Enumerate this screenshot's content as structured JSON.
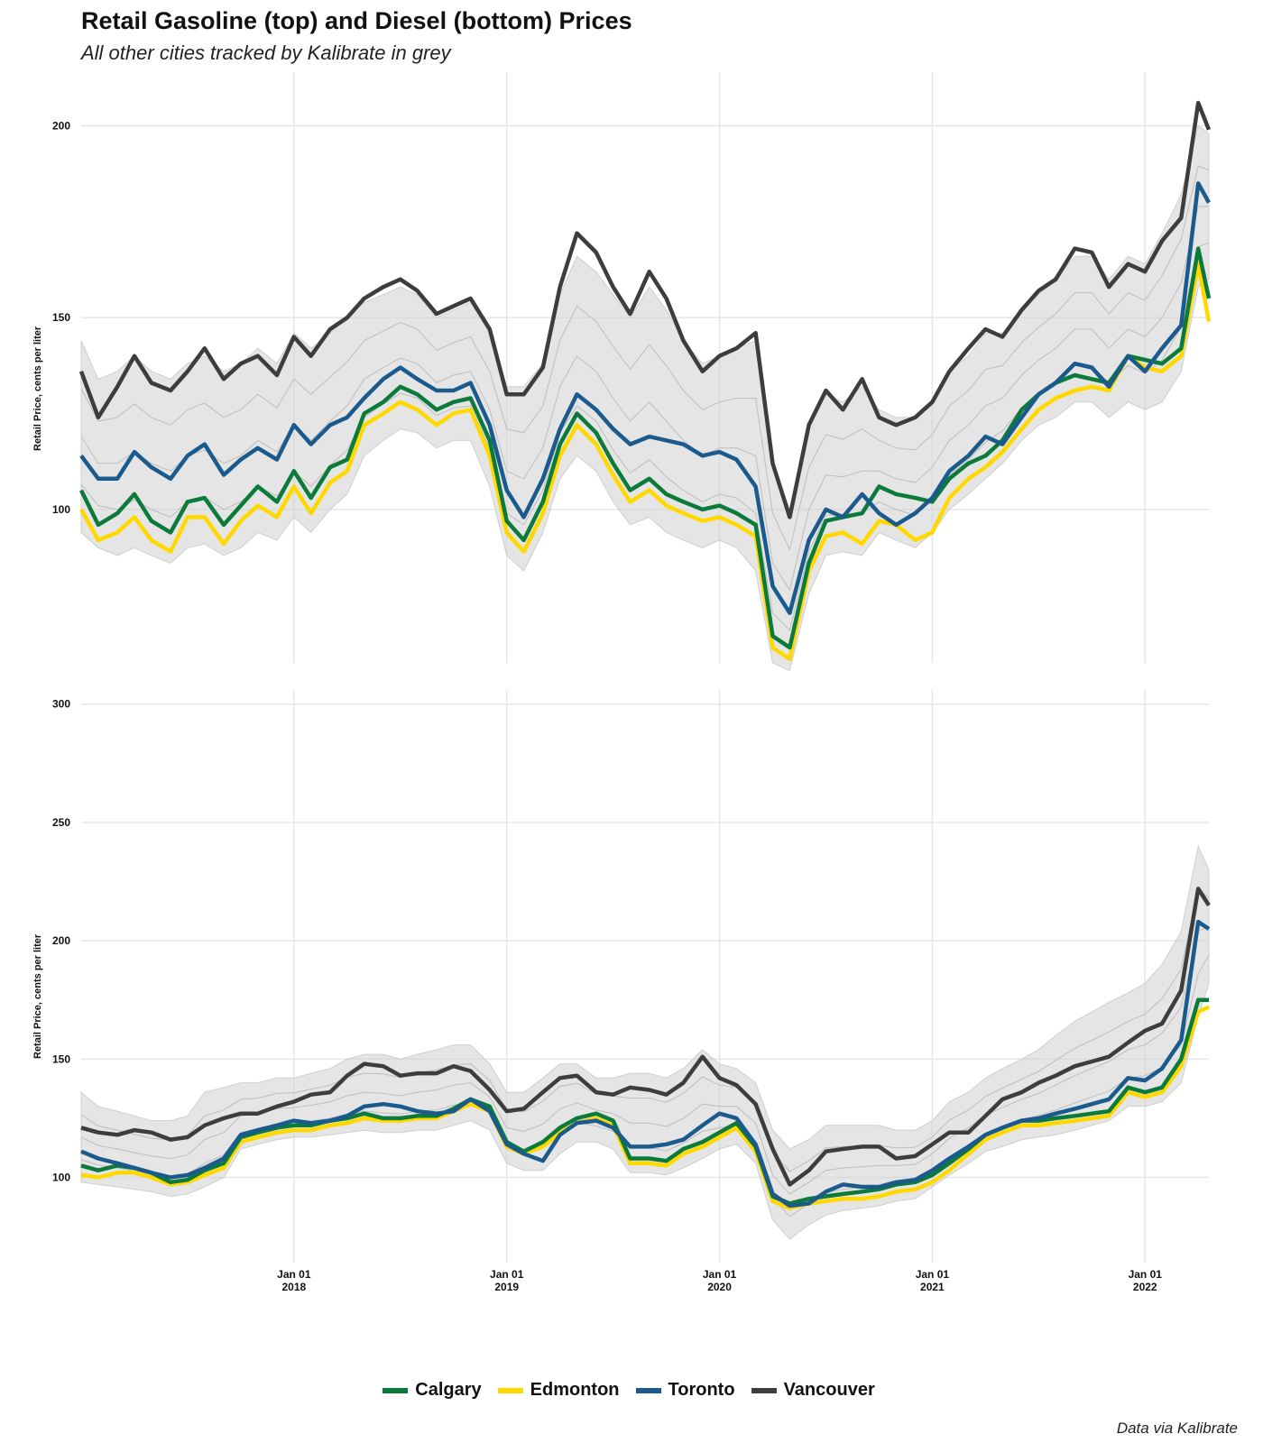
{
  "header": {
    "title": "Retail Gasoline (top) and Diesel (bottom) Prices",
    "subtitle": "All other cities tracked by Kalibrate in grey"
  },
  "caption": "Data via Kalibrate",
  "colors": {
    "Calgary": "#0b7a3a",
    "Edmonton": "#ffd800",
    "Toronto": "#1b5a8c",
    "Vancouver": "#3d3d3d",
    "others": "#cfcfcf",
    "grid": "#e6e6e6"
  },
  "legend": [
    {
      "name": "Calgary",
      "color": "#0b7a3a"
    },
    {
      "name": "Edmonton",
      "color": "#ffd800"
    },
    {
      "name": "Toronto",
      "color": "#1b5a8c"
    },
    {
      "name": "Vancouver",
      "color": "#3d3d3d"
    }
  ],
  "chart_data": [
    {
      "type": "line",
      "title": "Retail Gasoline Prices",
      "ylabel": "Retail Price, cents per liter",
      "xlim": [
        2017.0,
        2022.3
      ],
      "ylim": [
        60,
        214
      ],
      "yticks": [
        100,
        150,
        200
      ],
      "x_ticks": [
        {
          "value": 2018.0,
          "label": "Jan 01",
          "year": "2018"
        },
        {
          "value": 2019.0,
          "label": "Jan 01",
          "year": "2019"
        },
        {
          "value": 2020.0,
          "label": "Jan 01",
          "year": "2020"
        },
        {
          "value": 2021.0,
          "label": "Jan 01",
          "year": "2021"
        },
        {
          "value": 2022.0,
          "label": "Jan 01",
          "year": "2022"
        }
      ],
      "x": [
        2017.0,
        2017.08,
        2017.17,
        2017.25,
        2017.33,
        2017.42,
        2017.5,
        2017.58,
        2017.67,
        2017.75,
        2017.83,
        2017.92,
        2018.0,
        2018.08,
        2018.17,
        2018.25,
        2018.33,
        2018.42,
        2018.5,
        2018.58,
        2018.67,
        2018.75,
        2018.83,
        2018.92,
        2019.0,
        2019.08,
        2019.17,
        2019.25,
        2019.33,
        2019.42,
        2019.5,
        2019.58,
        2019.67,
        2019.75,
        2019.83,
        2019.92,
        2020.0,
        2020.08,
        2020.17,
        2020.25,
        2020.33,
        2020.42,
        2020.5,
        2020.58,
        2020.67,
        2020.75,
        2020.83,
        2020.92,
        2021.0,
        2021.08,
        2021.17,
        2021.25,
        2021.33,
        2021.42,
        2021.5,
        2021.58,
        2021.67,
        2021.75,
        2021.83,
        2021.92,
        2022.0,
        2022.08,
        2022.17,
        2022.25,
        2022.3
      ],
      "series": [
        {
          "name": "Vancouver",
          "values": [
            136,
            124,
            132,
            140,
            133,
            131,
            136,
            142,
            134,
            138,
            140,
            135,
            145,
            140,
            147,
            150,
            155,
            158,
            160,
            157,
            151,
            153,
            155,
            147,
            130,
            130,
            137,
            158,
            172,
            167,
            158,
            151,
            162,
            155,
            144,
            136,
            140,
            142,
            146,
            112,
            98,
            122,
            131,
            126,
            134,
            124,
            122,
            124,
            128,
            136,
            142,
            147,
            145,
            152,
            157,
            160,
            168,
            167,
            158,
            164,
            162,
            170,
            176,
            206,
            199
          ]
        },
        {
          "name": "Toronto",
          "values": [
            114,
            108,
            108,
            115,
            111,
            108,
            114,
            117,
            109,
            113,
            116,
            113,
            122,
            117,
            122,
            124,
            129,
            134,
            137,
            134,
            131,
            131,
            133,
            122,
            105,
            98,
            108,
            121,
            130,
            126,
            121,
            117,
            119,
            118,
            117,
            114,
            115,
            113,
            106,
            80,
            73,
            92,
            100,
            98,
            104,
            99,
            96,
            99,
            103,
            110,
            114,
            119,
            117,
            124,
            130,
            133,
            138,
            137,
            132,
            140,
            136,
            142,
            148,
            185,
            180
          ]
        },
        {
          "name": "Calgary",
          "values": [
            105,
            96,
            99,
            104,
            97,
            94,
            102,
            103,
            96,
            101,
            106,
            102,
            110,
            103,
            111,
            113,
            125,
            128,
            132,
            130,
            126,
            128,
            129,
            118,
            97,
            92,
            102,
            117,
            125,
            120,
            112,
            105,
            108,
            104,
            102,
            100,
            101,
            99,
            96,
            67,
            64,
            86,
            97,
            98,
            99,
            106,
            104,
            103,
            102,
            108,
            112,
            114,
            118,
            126,
            130,
            133,
            135,
            134,
            133,
            140,
            139,
            138,
            142,
            168,
            155
          ]
        },
        {
          "name": "Edmonton",
          "values": [
            100,
            92,
            94,
            98,
            92,
            89,
            98,
            98,
            91,
            97,
            101,
            98,
            106,
            99,
            107,
            110,
            122,
            125,
            128,
            126,
            122,
            125,
            126,
            114,
            94,
            89,
            99,
            114,
            122,
            117,
            109,
            102,
            105,
            101,
            99,
            97,
            98,
            96,
            93,
            64,
            61,
            84,
            93,
            94,
            91,
            97,
            96,
            92,
            94,
            103,
            108,
            111,
            115,
            121,
            126,
            129,
            131,
            132,
            131,
            140,
            137,
            136,
            140,
            164,
            149
          ]
        }
      ],
      "grey_band": {
        "lower": [
          94,
          90,
          88,
          90,
          88,
          86,
          90,
          91,
          88,
          90,
          94,
          92,
          98,
          94,
          100,
          104,
          114,
          118,
          121,
          120,
          116,
          118,
          118,
          106,
          88,
          84,
          94,
          108,
          114,
          110,
          102,
          96,
          98,
          94,
          92,
          90,
          92,
          90,
          84,
          60,
          58,
          78,
          88,
          89,
          88,
          94,
          92,
          90,
          94,
          100,
          104,
          108,
          112,
          118,
          122,
          124,
          128,
          128,
          124,
          128,
          126,
          128,
          136,
          158,
          160
        ],
        "upper": [
          144,
          134,
          136,
          140,
          136,
          134,
          138,
          140,
          136,
          138,
          142,
          138,
          146,
          142,
          146,
          150,
          154,
          156,
          158,
          156,
          150,
          152,
          154,
          146,
          132,
          132,
          138,
          156,
          166,
          162,
          156,
          150,
          158,
          152,
          144,
          138,
          140,
          142,
          144,
          112,
          100,
          122,
          130,
          128,
          132,
          126,
          124,
          124,
          128,
          136,
          140,
          146,
          146,
          152,
          156,
          160,
          166,
          166,
          160,
          166,
          164,
          172,
          182,
          200,
          198
        ]
      }
    },
    {
      "type": "line",
      "title": "Retail Diesel Prices",
      "ylabel": "Retail Price, cents per liter",
      "xlim": [
        2017.0,
        2022.3
      ],
      "ylim": [
        64,
        306
      ],
      "yticks": [
        100,
        150,
        200,
        250,
        300
      ],
      "x_ticks": [
        {
          "value": 2018.0,
          "label": "Jan 01",
          "year": "2018"
        },
        {
          "value": 2019.0,
          "label": "Jan 01",
          "year": "2019"
        },
        {
          "value": 2020.0,
          "label": "Jan 01",
          "year": "2020"
        },
        {
          "value": 2021.0,
          "label": "Jan 01",
          "year": "2021"
        },
        {
          "value": 2022.0,
          "label": "Jan 01",
          "year": "2022"
        }
      ],
      "x": [
        2017.0,
        2017.08,
        2017.17,
        2017.25,
        2017.33,
        2017.42,
        2017.5,
        2017.58,
        2017.67,
        2017.75,
        2017.83,
        2017.92,
        2018.0,
        2018.08,
        2018.17,
        2018.25,
        2018.33,
        2018.42,
        2018.5,
        2018.58,
        2018.67,
        2018.75,
        2018.83,
        2018.92,
        2019.0,
        2019.08,
        2019.17,
        2019.25,
        2019.33,
        2019.42,
        2019.5,
        2019.58,
        2019.67,
        2019.75,
        2019.83,
        2019.92,
        2020.0,
        2020.08,
        2020.17,
        2020.25,
        2020.33,
        2020.42,
        2020.5,
        2020.58,
        2020.67,
        2020.75,
        2020.83,
        2020.92,
        2021.0,
        2021.08,
        2021.17,
        2021.25,
        2021.33,
        2021.42,
        2021.5,
        2021.58,
        2021.67,
        2021.75,
        2021.83,
        2021.92,
        2022.0,
        2022.08,
        2022.17,
        2022.25,
        2022.3
      ],
      "series": [
        {
          "name": "Vancouver",
          "values": [
            121,
            119,
            118,
            120,
            119,
            116,
            117,
            122,
            125,
            127,
            127,
            130,
            132,
            135,
            136,
            143,
            148,
            147,
            143,
            144,
            144,
            147,
            145,
            137,
            128,
            129,
            136,
            142,
            143,
            136,
            135,
            138,
            137,
            135,
            140,
            151,
            142,
            139,
            131,
            112,
            97,
            103,
            111,
            112,
            113,
            113,
            108,
            109,
            114,
            119,
            119,
            126,
            133,
            136,
            140,
            143,
            147,
            149,
            151,
            157,
            162,
            165,
            179,
            222,
            215
          ]
        },
        {
          "name": "Toronto",
          "values": [
            111,
            108,
            106,
            104,
            102,
            100,
            101,
            104,
            108,
            118,
            120,
            122,
            124,
            123,
            124,
            126,
            130,
            131,
            130,
            128,
            127,
            128,
            133,
            128,
            114,
            110,
            107,
            118,
            123,
            124,
            121,
            113,
            113,
            114,
            116,
            122,
            127,
            125,
            114,
            93,
            88,
            89,
            94,
            97,
            96,
            96,
            98,
            99,
            103,
            108,
            113,
            118,
            121,
            124,
            125,
            127,
            129,
            131,
            133,
            142,
            141,
            146,
            158,
            208,
            205
          ]
        },
        {
          "name": "Calgary",
          "values": [
            105,
            103,
            105,
            104,
            102,
            98,
            99,
            103,
            106,
            117,
            119,
            121,
            122,
            122,
            124,
            125,
            127,
            125,
            125,
            126,
            126,
            129,
            133,
            130,
            115,
            111,
            115,
            121,
            125,
            127,
            124,
            108,
            108,
            107,
            112,
            115,
            119,
            123,
            113,
            92,
            89,
            91,
            92,
            93,
            94,
            95,
            97,
            98,
            101,
            106,
            112,
            118,
            121,
            124,
            124,
            125,
            126,
            127,
            128,
            138,
            136,
            138,
            150,
            175,
            175
          ]
        },
        {
          "name": "Edmonton",
          "values": [
            101,
            100,
            102,
            102,
            100,
            97,
            98,
            101,
            104,
            115,
            117,
            119,
            120,
            120,
            122,
            123,
            125,
            124,
            124,
            125,
            125,
            128,
            131,
            128,
            113,
            110,
            113,
            119,
            123,
            125,
            122,
            106,
            106,
            105,
            110,
            113,
            117,
            121,
            111,
            90,
            87,
            89,
            90,
            91,
            91,
            92,
            94,
            95,
            98,
            103,
            110,
            116,
            119,
            122,
            122,
            123,
            124,
            125,
            126,
            136,
            134,
            136,
            147,
            170,
            172
          ]
        }
      ],
      "grey_band": {
        "lower": [
          98,
          97,
          96,
          95,
          94,
          92,
          93,
          96,
          100,
          112,
          114,
          116,
          117,
          117,
          118,
          119,
          120,
          119,
          119,
          120,
          120,
          122,
          124,
          120,
          106,
          103,
          103,
          110,
          115,
          115,
          112,
          102,
          102,
          101,
          104,
          108,
          112,
          114,
          106,
          82,
          74,
          80,
          84,
          86,
          87,
          88,
          90,
          91,
          96,
          101,
          106,
          111,
          113,
          116,
          117,
          118,
          120,
          122,
          124,
          130,
          130,
          132,
          140,
          168,
          182
        ],
        "upper": [
          136,
          130,
          128,
          126,
          124,
          124,
          126,
          136,
          138,
          140,
          140,
          142,
          142,
          144,
          146,
          150,
          152,
          152,
          150,
          152,
          154,
          156,
          156,
          148,
          136,
          136,
          142,
          148,
          148,
          142,
          142,
          144,
          144,
          142,
          146,
          154,
          148,
          146,
          140,
          120,
          112,
          116,
          122,
          122,
          122,
          122,
          120,
          120,
          124,
          132,
          136,
          142,
          146,
          150,
          154,
          160,
          166,
          170,
          174,
          178,
          182,
          190,
          204,
          240,
          230
        ]
      }
    }
  ]
}
